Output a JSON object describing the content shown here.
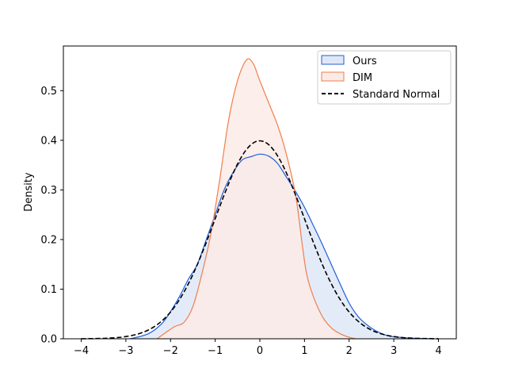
{
  "chart_data": {
    "type": "area",
    "title": "",
    "xlabel": "",
    "ylabel": "Density",
    "xlim": [
      -4.4,
      4.4
    ],
    "ylim": [
      0,
      0.59
    ],
    "xticks": [
      -4,
      -3,
      -2,
      -1,
      0,
      1,
      2,
      3,
      4
    ],
    "xtick_labels": [
      "−4",
      "−3",
      "−2",
      "−1",
      "0",
      "1",
      "2",
      "3",
      "4"
    ],
    "yticks": [
      0.0,
      0.1,
      0.2,
      0.3,
      0.4,
      0.5
    ],
    "ytick_labels": [
      "0.0",
      "0.1",
      "0.2",
      "0.3",
      "0.4",
      "0.5"
    ],
    "grid": false,
    "legend_position": "upper right",
    "series": [
      {
        "name": "Ours",
        "kind": "filled",
        "color": "#1f5fd6",
        "fill": "#dfe7f7",
        "points": [
          [
            -2.9,
            0.0
          ],
          [
            -2.5,
            0.01
          ],
          [
            -2.2,
            0.03
          ],
          [
            -2.0,
            0.055
          ],
          [
            -1.8,
            0.085
          ],
          [
            -1.6,
            0.12
          ],
          [
            -1.4,
            0.15
          ],
          [
            -1.2,
            0.2
          ],
          [
            -1.0,
            0.25
          ],
          [
            -0.8,
            0.3
          ],
          [
            -0.6,
            0.335
          ],
          [
            -0.4,
            0.36
          ],
          [
            -0.2,
            0.367
          ],
          [
            0.0,
            0.372
          ],
          [
            0.2,
            0.368
          ],
          [
            0.4,
            0.353
          ],
          [
            0.6,
            0.325
          ],
          [
            0.8,
            0.297
          ],
          [
            1.0,
            0.265
          ],
          [
            1.2,
            0.228
          ],
          [
            1.4,
            0.19
          ],
          [
            1.6,
            0.15
          ],
          [
            1.8,
            0.11
          ],
          [
            2.0,
            0.072
          ],
          [
            2.2,
            0.045
          ],
          [
            2.4,
            0.028
          ],
          [
            2.6,
            0.016
          ],
          [
            2.8,
            0.008
          ],
          [
            3.0,
            0.004
          ],
          [
            3.5,
            0.001
          ],
          [
            3.9,
            0.0
          ]
        ]
      },
      {
        "name": "DIM",
        "kind": "filled",
        "color": "#f07e4d",
        "fill": "#fbebe6",
        "points": [
          [
            -2.3,
            0.0
          ],
          [
            -2.1,
            0.013
          ],
          [
            -1.9,
            0.025
          ],
          [
            -1.7,
            0.033
          ],
          [
            -1.5,
            0.065
          ],
          [
            -1.3,
            0.13
          ],
          [
            -1.1,
            0.21
          ],
          [
            -0.9,
            0.32
          ],
          [
            -0.7,
            0.44
          ],
          [
            -0.5,
            0.52
          ],
          [
            -0.3,
            0.562
          ],
          [
            -0.15,
            0.555
          ],
          [
            0.0,
            0.52
          ],
          [
            0.2,
            0.475
          ],
          [
            0.4,
            0.43
          ],
          [
            0.6,
            0.37
          ],
          [
            0.8,
            0.29
          ],
          [
            0.95,
            0.19
          ],
          [
            1.05,
            0.13
          ],
          [
            1.2,
            0.085
          ],
          [
            1.4,
            0.045
          ],
          [
            1.6,
            0.022
          ],
          [
            1.8,
            0.01
          ],
          [
            2.0,
            0.003
          ],
          [
            2.15,
            0.0
          ]
        ]
      },
      {
        "name": "Standard Normal",
        "kind": "dashed",
        "color": "#000000",
        "points": []
      }
    ]
  }
}
